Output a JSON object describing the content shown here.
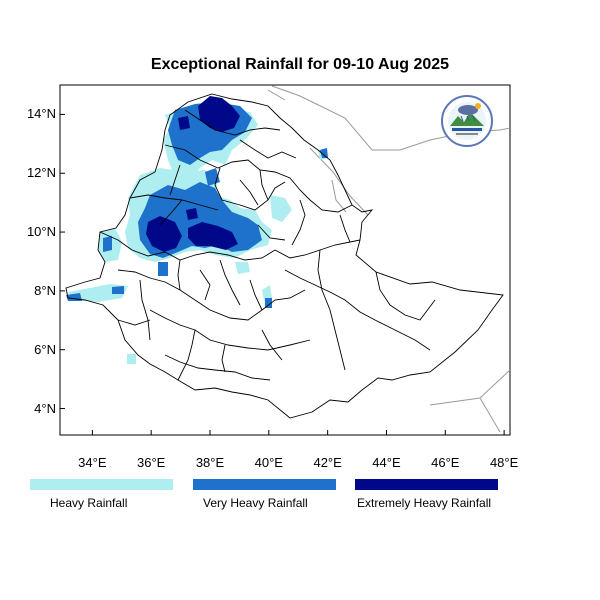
{
  "title": "Exceptional Rainfall for 09-10 Aug 2025",
  "lat_ticks": [
    "4°N",
    "6°N",
    "8°N",
    "10°N",
    "12°N",
    "14°N"
  ],
  "lon_ticks": [
    "34°E",
    "36°E",
    "38°E",
    "40°E",
    "42°E",
    "44°E",
    "46°E",
    "48°E"
  ],
  "extent": {
    "lon": [
      32.9,
      48.2
    ],
    "lat": [
      3.1,
      15.0
    ]
  },
  "legend": [
    {
      "label": "Heavy Rainfall",
      "color": "#aeeef0"
    },
    {
      "label": "Very Heavy Rainfall",
      "color": "#1e72cc"
    },
    {
      "label": "Extremely Heavy Rainfall",
      "color": "#00088a"
    }
  ],
  "colors": {
    "border": "#000000",
    "neighbor_border": "#9a9a9a"
  }
}
